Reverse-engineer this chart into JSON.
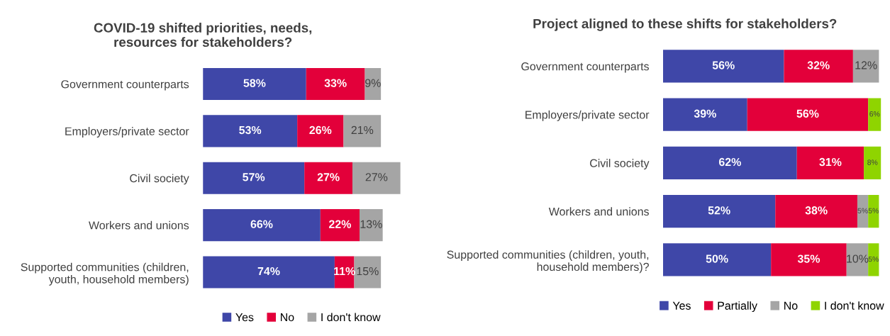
{
  "chart_data": [
    {
      "type": "bar",
      "orientation": "horizontal",
      "stacked": true,
      "title": "COVID-19 shifted priorities, needs,\nresources for stakeholders?",
      "categories": [
        "Government counterparts",
        "Employers/private sector",
        "Civil society",
        "Workers and unions",
        "Supported communities (children,\nyouth, household members)"
      ],
      "series": [
        {
          "name": "Yes",
          "color": "#3f47a8",
          "values": [
            58,
            53,
            57,
            66,
            74
          ],
          "value_labels": [
            "58%",
            "53%",
            "57%",
            "66%",
            "74%"
          ]
        },
        {
          "name": "No",
          "color": "#e3003a",
          "values": [
            33,
            26,
            27,
            22,
            11
          ],
          "value_labels": [
            "33%",
            "26%",
            "27%",
            "22%",
            "11%"
          ]
        },
        {
          "name": "I don't know",
          "color": "#a5a5a5",
          "values": [
            9,
            21,
            27,
            13,
            15
          ],
          "value_labels": [
            "9%",
            "21%",
            "27%",
            "13%",
            "15%"
          ]
        }
      ],
      "legend": "bottom"
    },
    {
      "type": "bar",
      "orientation": "horizontal",
      "stacked": true,
      "title": "Project aligned to these shifts for stakeholders?",
      "categories": [
        "Government counterparts",
        "Employers/private sector",
        "Civil society",
        "Workers and unions",
        "Supported communities (children, youth,\nhousehold members)?"
      ],
      "series": [
        {
          "name": "Yes",
          "color": "#3f47a8",
          "values": [
            56,
            39,
            62,
            52,
            50
          ],
          "value_labels": [
            "56%",
            "39%",
            "62%",
            "52%",
            "50%"
          ]
        },
        {
          "name": "Partially",
          "color": "#e3003a",
          "values": [
            32,
            56,
            31,
            38,
            35
          ],
          "value_labels": [
            "32%",
            "56%",
            "31%",
            "38%",
            "35%"
          ]
        },
        {
          "name": "No",
          "color": "#a5a5a5",
          "values": [
            12,
            null,
            null,
            5,
            10
          ],
          "value_labels": [
            "12%",
            null,
            null,
            "5%",
            "10%"
          ]
        },
        {
          "name": "I don't know",
          "color": "#8fd400",
          "values": [
            null,
            6,
            8,
            5,
            5
          ],
          "value_labels": [
            null,
            "6%",
            "8%",
            "5%",
            "5%"
          ]
        }
      ],
      "legend": "bottom"
    }
  ]
}
